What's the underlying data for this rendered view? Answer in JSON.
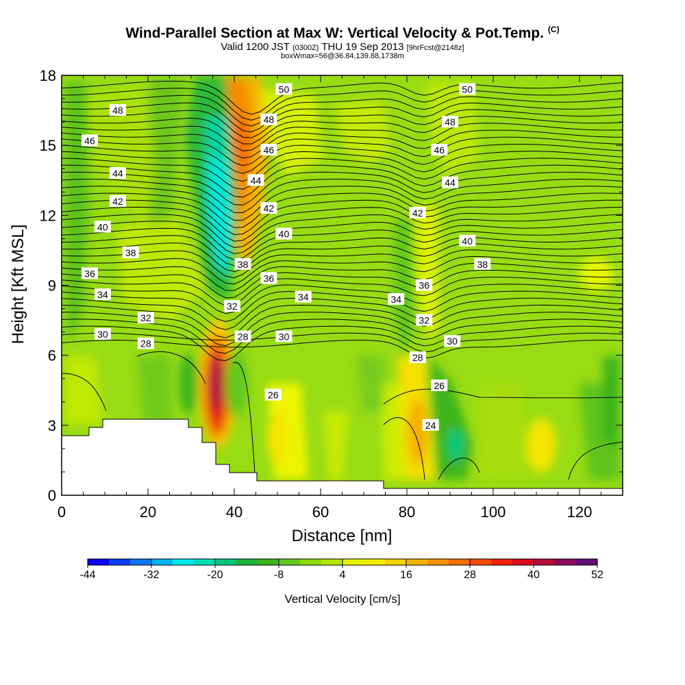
{
  "header": {
    "title": "Wind-Parallel Section at Max W: Vertical Velocity & Pot.Temp.",
    "title_mark": "(C)",
    "valid_prefix": "Valid 1200 JST",
    "valid_utc": "(0300Z)",
    "valid_date": "THU 19 Sep 2013",
    "forecast_tag": "[9hrFcst@2148z]",
    "box_info": "boxWmax=56@36.84,139.88,1738m"
  },
  "chart_data": {
    "type": "heatmap",
    "xlabel": "Distance [nm]",
    "ylabel": "Height [Kft MSL]",
    "xlim": [
      0,
      130
    ],
    "ylim": [
      0,
      18
    ],
    "x_ticks": [
      "0",
      "20",
      "40",
      "60",
      "80",
      "100",
      "120"
    ],
    "y_ticks": [
      "0",
      "3",
      "6",
      "9",
      "12",
      "15",
      "18"
    ],
    "colorbar": {
      "title": "Vertical Velocity [cm/s]",
      "labels": [
        "-44",
        "-32",
        "-20",
        "-8",
        "4",
        "16",
        "28",
        "40",
        "52"
      ],
      "colors": [
        "#0a00f5",
        "#0a3cf5",
        "#0a78f5",
        "#00b4f0",
        "#00ebeb",
        "#00dcb4",
        "#00c878",
        "#1eb43c",
        "#3cb41e",
        "#64c81e",
        "#8cdc0a",
        "#b4e600",
        "#e6f500",
        "#f5f000",
        "#f5d200",
        "#f5b400",
        "#f59100",
        "#f56e00",
        "#f54b00",
        "#f51e0a",
        "#dc0a1e",
        "#b40a3c",
        "#8c0a5a",
        "#640a78"
      ]
    },
    "theta_labels": [
      {
        "text": "50",
        "x": 51.5,
        "y": 17.4
      },
      {
        "text": "50",
        "x": 94,
        "y": 17.4
      },
      {
        "text": "48",
        "x": 13,
        "y": 16.5
      },
      {
        "text": "48",
        "x": 48,
        "y": 16.1
      },
      {
        "text": "48",
        "x": 90,
        "y": 16.0
      },
      {
        "text": "46",
        "x": 6.5,
        "y": 15.2
      },
      {
        "text": "46",
        "x": 48,
        "y": 14.8
      },
      {
        "text": "46",
        "x": 87.5,
        "y": 14.8
      },
      {
        "text": "44",
        "x": 13,
        "y": 13.8
      },
      {
        "text": "44",
        "x": 45,
        "y": 13.5
      },
      {
        "text": "44",
        "x": 90,
        "y": 13.4
      },
      {
        "text": "42",
        "x": 13,
        "y": 12.6
      },
      {
        "text": "42",
        "x": 48,
        "y": 12.3
      },
      {
        "text": "42",
        "x": 82.5,
        "y": 12.1
      },
      {
        "text": "40",
        "x": 9.5,
        "y": 11.5
      },
      {
        "text": "40",
        "x": 51.5,
        "y": 11.2
      },
      {
        "text": "40",
        "x": 94,
        "y": 10.9
      },
      {
        "text": "38",
        "x": 16,
        "y": 10.4
      },
      {
        "text": "38",
        "x": 42,
        "y": 9.9
      },
      {
        "text": "38",
        "x": 97.5,
        "y": 9.9
      },
      {
        "text": "36",
        "x": 6.5,
        "y": 9.5
      },
      {
        "text": "36",
        "x": 48,
        "y": 9.3
      },
      {
        "text": "36",
        "x": 84,
        "y": 9.0
      },
      {
        "text": "34",
        "x": 9.5,
        "y": 8.6
      },
      {
        "text": "34",
        "x": 56,
        "y": 8.5
      },
      {
        "text": "34",
        "x": 77.5,
        "y": 8.4
      },
      {
        "text": "32",
        "x": 19.5,
        "y": 7.6
      },
      {
        "text": "32",
        "x": 39.5,
        "y": 8.1
      },
      {
        "text": "32",
        "x": 84,
        "y": 7.5
      },
      {
        "text": "30",
        "x": 9.5,
        "y": 6.9
      },
      {
        "text": "30",
        "x": 51.5,
        "y": 6.8
      },
      {
        "text": "30",
        "x": 90.5,
        "y": 6.6
      },
      {
        "text": "28",
        "x": 19.5,
        "y": 6.5
      },
      {
        "text": "28",
        "x": 42,
        "y": 6.8
      },
      {
        "text": "28",
        "x": 82.5,
        "y": 5.9
      },
      {
        "text": "26",
        "x": 49,
        "y": 4.3
      },
      {
        "text": "26",
        "x": 87.5,
        "y": 4.7
      },
      {
        "text": "24",
        "x": 85.5,
        "y": 3.0
      }
    ]
  }
}
